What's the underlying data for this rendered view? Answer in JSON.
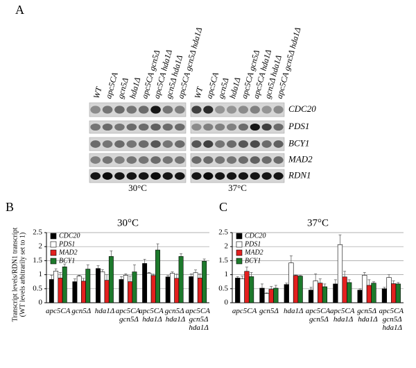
{
  "panel_labels": [
    "A",
    "B",
    "C"
  ],
  "blot": {
    "genes": [
      "CDC20",
      "PDS1",
      "BCY1",
      "MAD2",
      "RDN1"
    ],
    "panels": [
      {
        "temperature": "30°C",
        "lanes": [
          "WT",
          "apc5CA",
          "gcn5Δ",
          "hda1Δ",
          "apc5CA gcn5Δ",
          "apc5CA hda1Δ",
          "gcn5Δ hda1Δ",
          "apc5CA gcn5Δ hda1Δ"
        ]
      },
      {
        "temperature": "37°C",
        "lanes": [
          "WT",
          "apc5CA",
          "gcn5Δ",
          "hda1Δ",
          "apc5CA gcn5Δ",
          "apc5CA hda1Δ",
          "gcn5Δ hda1Δ",
          "apc5CA gcn5Δ hda1Δ"
        ]
      }
    ]
  },
  "chart_data": [
    {
      "type": "bar",
      "title": "30°C",
      "y_label": [
        "Transcript levels/RDN1 transcript",
        "(WT levels arbitrarily set to 1)"
      ],
      "categories": [
        "apc5CA",
        "gcn5Δ",
        "hda1Δ",
        "apc5CA gcn5Δ",
        "apc5CA hda1Δ",
        "gcn5Δ hda1Δ",
        "apc5CA gcn5Δ hda1Δ"
      ],
      "ylim": [
        0,
        2.5
      ],
      "yticks": [
        0,
        0.5,
        1,
        1.5,
        2,
        2.5
      ],
      "grid": true,
      "series": [
        {
          "name": "CDC20",
          "color": "#000000",
          "values": [
            0.83,
            0.75,
            1.22,
            0.83,
            1.4,
            0.92,
            0.93
          ],
          "errors": [
            0.15,
            0.1,
            0.1,
            0.1,
            0.15,
            0.05,
            0.1
          ]
        },
        {
          "name": "PDS1",
          "color": "#ffffff",
          "values": [
            1.13,
            0.95,
            1.1,
            0.98,
            1.05,
            1.05,
            1.07
          ],
          "errors": [
            0.08,
            0.03,
            0.08,
            0.05,
            0.03,
            0.05,
            0.1
          ]
        },
        {
          "name": "MAD2",
          "color": "#e3201f",
          "values": [
            0.88,
            0.77,
            0.8,
            0.75,
            0.97,
            0.87,
            0.88
          ],
          "errors": [
            0.2,
            0.1,
            0.2,
            0.2,
            0.05,
            0.15,
            0.15
          ]
        },
        {
          "name": "BCY1",
          "color": "#1d7a2c",
          "values": [
            1.28,
            1.2,
            1.65,
            1.1,
            1.88,
            1.65,
            1.48
          ],
          "errors": [
            0.1,
            0.15,
            0.2,
            0.25,
            0.22,
            0.1,
            0.08
          ]
        }
      ]
    },
    {
      "type": "bar",
      "title": "37°C",
      "categories": [
        "apc5CA",
        "gcn5Δ",
        "hda1Δ",
        "apc5CA gcn5Δ",
        "apc5CA hda1Δ",
        "gcn5Δ hda1Δ",
        "apc5CA gcn5Δ hda1Δ"
      ],
      "ylim": [
        0,
        2.5
      ],
      "yticks": [
        0,
        0.5,
        1,
        1.5,
        2,
        2.5
      ],
      "grid": true,
      "series": [
        {
          "name": "CDC20",
          "color": "#000000",
          "values": [
            0.88,
            0.52,
            0.65,
            0.45,
            0.67,
            0.45,
            0.5
          ],
          "errors": [
            0.05,
            0.15,
            0.05,
            0.1,
            0.15,
            0.05,
            0.05
          ]
        },
        {
          "name": "PDS1",
          "color": "#ffffff",
          "values": [
            0.85,
            0.33,
            1.42,
            0.78,
            2.07,
            0.98,
            0.9
          ],
          "errors": [
            0.1,
            0.02,
            0.25,
            0.25,
            0.35,
            0.1,
            0.1
          ]
        },
        {
          "name": "MAD2",
          "color": "#e3201f",
          "values": [
            1.12,
            0.48,
            0.97,
            0.7,
            0.92,
            0.62,
            0.68
          ],
          "errors": [
            0.15,
            0.1,
            0.02,
            0.15,
            0.2,
            0.2,
            0.1
          ]
        },
        {
          "name": "BCY1",
          "color": "#1d7a2c",
          "values": [
            0.93,
            0.52,
            0.95,
            0.57,
            0.72,
            0.7,
            0.67
          ],
          "errors": [
            0.15,
            0.1,
            0.02,
            0.1,
            0.1,
            0.05,
            0.05
          ]
        }
      ]
    }
  ]
}
